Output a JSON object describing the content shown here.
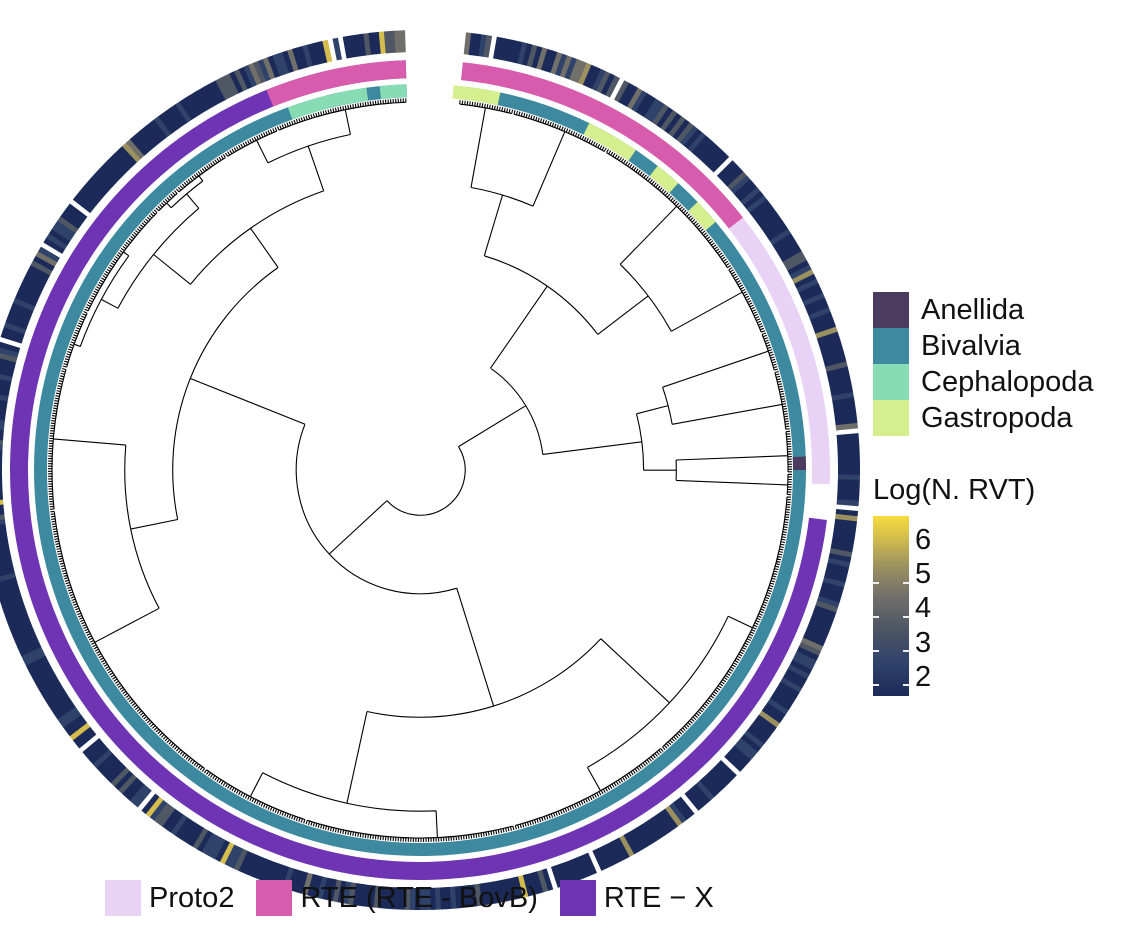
{
  "clade_legend": {
    "items": [
      {
        "label": "Anellida",
        "color": "#4b3b5e"
      },
      {
        "label": "Bivalvia",
        "color": "#3d8aa0"
      },
      {
        "label": "Cephalopoda",
        "color": "#88dcb4"
      },
      {
        "label": "Gastropoda",
        "color": "#d6ef8e"
      }
    ]
  },
  "rvt_legend": {
    "title": "Log(N. RVT)",
    "ticks": [
      "6",
      "5",
      "4",
      "3",
      "2"
    ],
    "colors": [
      "#1b2a58",
      "#2f426a",
      "#4f5764",
      "#716f6a",
      "#9b9160",
      "#d4bd4c",
      "#f6dc3c"
    ]
  },
  "family_legend": {
    "items": [
      {
        "label": "Proto2",
        "color": "#e8d2f5"
      },
      {
        "label": "RTE (RTE - BovB)",
        "color": "#d85cae"
      },
      {
        "label": "RTE − X",
        "color": "#6e34b4"
      }
    ]
  },
  "colors": {
    "branch": "#000000",
    "ring_bg": "#ffffff"
  }
}
